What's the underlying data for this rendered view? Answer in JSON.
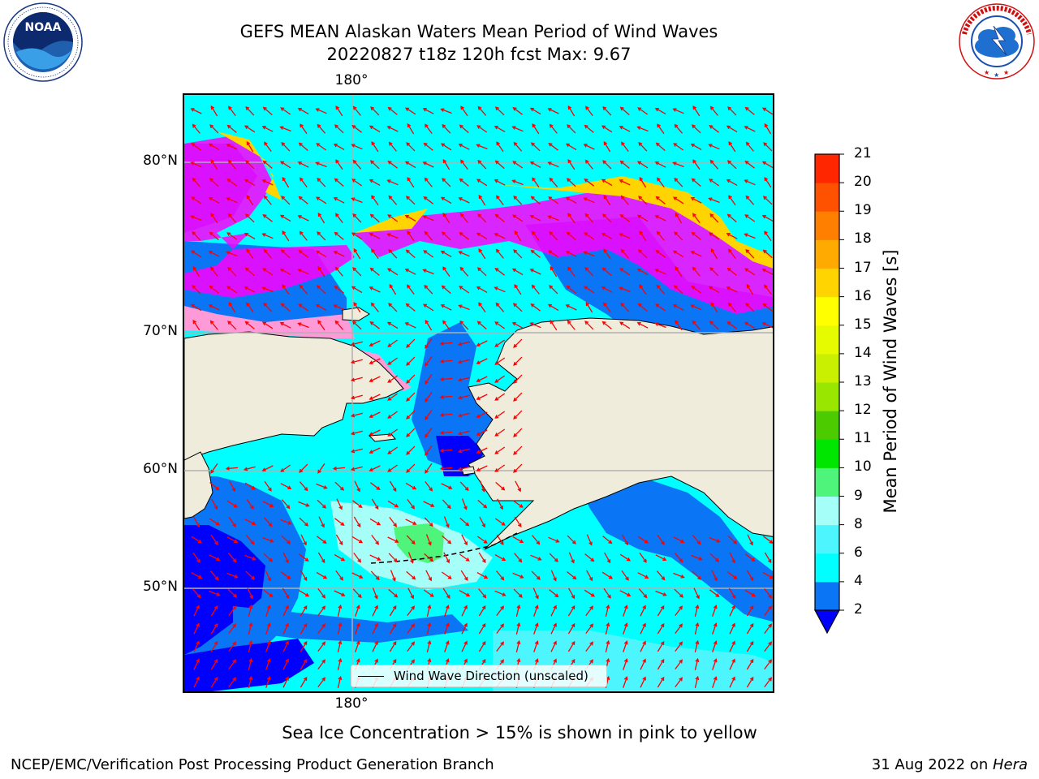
{
  "header": {
    "title_line1": "GEFS MEAN Alaskan Waters Mean Period of Wind Waves",
    "title_line2": "20220827 t18z 120h fcst   Max: 9.67"
  },
  "logos": {
    "noaa_text": "NOAA",
    "noaa_ring_text": "NATIONAL OCEANIC AND ATMOSPHERIC ADMINISTRATION · U.S. DEPARTMENT OF COMMERCE",
    "nws_ring_text": "NATIONAL WEATHER SERVICE"
  },
  "map": {
    "lon_label_top": "180°",
    "lon_label_bottom": "180°",
    "lat_labels": [
      "80°N",
      "70°N",
      "60°N",
      "50°N"
    ],
    "legend_label": "Wind Wave Direction (unscaled)",
    "colors": {
      "land": "#efecdc",
      "grid": "#b0b0b0",
      "arrow": "#ff0000"
    }
  },
  "colorbar": {
    "label": "Mean Period of Wind Waves [s]",
    "ticks": [
      "2",
      "4",
      "6",
      "8",
      "9",
      "10",
      "11",
      "12",
      "13",
      "14",
      "15",
      "16",
      "17",
      "18",
      "19",
      "20",
      "21"
    ],
    "colors": [
      "#0a76f5",
      "#00ffff",
      "#4df6ff",
      "#a5fff8",
      "#4ef57a",
      "#00e600",
      "#4ccc00",
      "#99e600",
      "#c8f000",
      "#e7fb00",
      "#ffff00",
      "#ffd400",
      "#ffaa00",
      "#ff8000",
      "#ff5200",
      "#ff2600"
    ],
    "under_color": "#0000ff",
    "top_color": "#ff0000"
  },
  "notes": {
    "ice_note": "Sea Ice Concentration > 15% is shown in pink to yellow"
  },
  "footer": {
    "left": "NCEP/EMC/Verification Post Processing Product Generation Branch",
    "right_date": "31 Aug 2022 on ",
    "right_machine": "Hera"
  }
}
